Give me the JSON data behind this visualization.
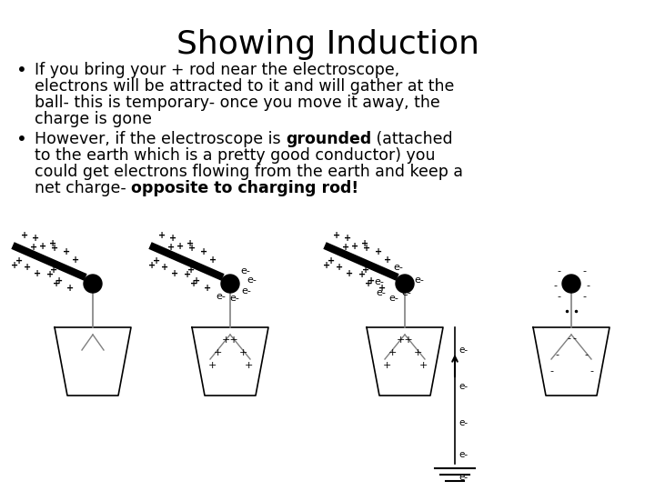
{
  "title": "Showing Induction",
  "bg_color": "#ffffff",
  "title_fontsize": 26,
  "body_fontsize": 12.5,
  "bullet1_lines": [
    "If you bring your + rod near the electroscope,",
    "electrons will be attracted to it and will gather at the",
    "ball- this is temporary- once you move it away, the",
    "charge is gone"
  ],
  "bullet2_line1_normal": "However, if the electroscope is ",
  "bullet2_line1_bold": "grounded",
  "bullet2_line1_end": " (attached",
  "bullet2_lines_rest": [
    "to the earth which is a pretty good conductor) you",
    "could get electrons flowing from the earth and keep a"
  ],
  "bullet2_line4_normal": "net charge- ",
  "bullet2_line4_bold": "opposite to charging rod!"
}
